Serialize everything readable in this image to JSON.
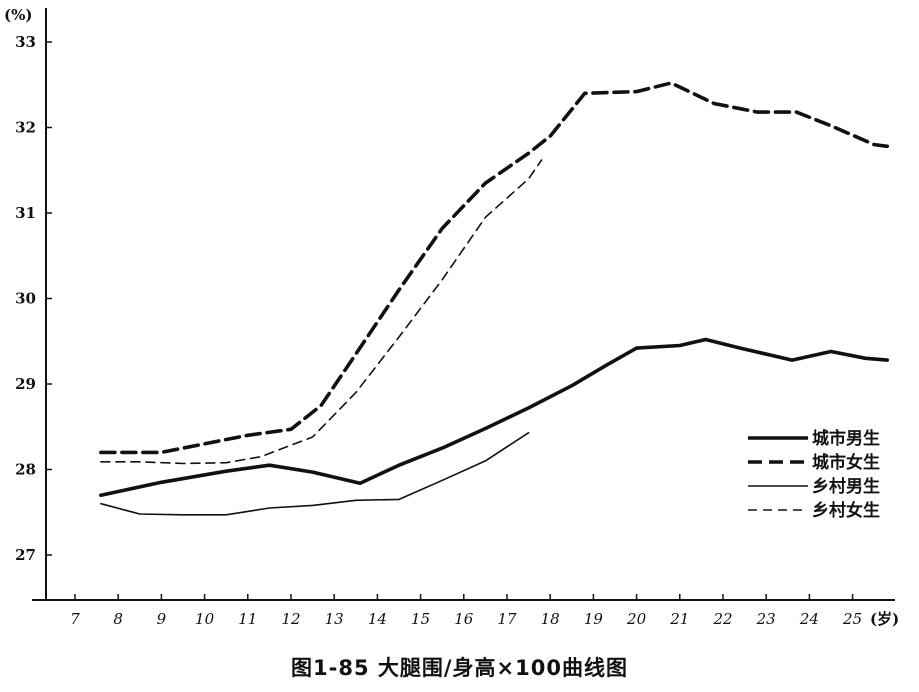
{
  "chart_data": {
    "type": "line",
    "title": "图1-85  大腿围/身高×100曲线图",
    "y_unit_label": "(%)",
    "x_unit_label": "(岁)",
    "xlim": [
      6,
      26
    ],
    "ylim": [
      26.5,
      33.3
    ],
    "x_ticks": [
      "7",
      "8",
      "9",
      "10",
      "11",
      "12",
      "13",
      "14",
      "15",
      "16",
      "17",
      "18",
      "19",
      "20",
      "21",
      "22",
      "23",
      "24",
      "25"
    ],
    "y_ticks": [
      "27",
      "28",
      "29",
      "30",
      "31",
      "32",
      "33"
    ],
    "grid": false,
    "legend_position": "right",
    "series": [
      {
        "name": "城市男生",
        "style": "thick-solid",
        "color": "#111111",
        "points": [
          [
            7.6,
            27.7
          ],
          [
            9,
            27.85
          ],
          [
            10.5,
            27.98
          ],
          [
            11.5,
            28.05
          ],
          [
            12.5,
            27.97
          ],
          [
            13.6,
            27.84
          ],
          [
            14.5,
            28.05
          ],
          [
            15.5,
            28.25
          ],
          [
            16.5,
            28.48
          ],
          [
            17.5,
            28.72
          ],
          [
            18.5,
            28.98
          ],
          [
            19.3,
            29.22
          ],
          [
            20,
            29.42
          ],
          [
            21,
            29.45
          ],
          [
            21.6,
            29.52
          ],
          [
            22.4,
            29.42
          ],
          [
            23.6,
            29.28
          ],
          [
            24.5,
            29.38
          ],
          [
            25.3,
            29.3
          ],
          [
            25.8,
            29.28
          ]
        ]
      },
      {
        "name": "城市女生",
        "style": "thick-dashed",
        "color": "#111111",
        "points": [
          [
            7.6,
            28.2
          ],
          [
            9,
            28.2
          ],
          [
            10,
            28.3
          ],
          [
            11,
            28.4
          ],
          [
            12,
            28.47
          ],
          [
            12.7,
            28.75
          ],
          [
            13.5,
            29.35
          ],
          [
            14.5,
            30.1
          ],
          [
            15.5,
            30.82
          ],
          [
            16.5,
            31.35
          ],
          [
            17.5,
            31.7
          ],
          [
            18,
            31.9
          ],
          [
            18.8,
            32.4
          ],
          [
            20,
            32.42
          ],
          [
            20.8,
            32.52
          ],
          [
            21.8,
            32.28
          ],
          [
            22.8,
            32.18
          ],
          [
            23.7,
            32.18
          ],
          [
            24.5,
            32.02
          ],
          [
            25.5,
            31.8
          ],
          [
            25.8,
            31.78
          ]
        ]
      },
      {
        "name": "乡村男生",
        "style": "thin-solid",
        "color": "#111111",
        "points": [
          [
            7.6,
            27.6
          ],
          [
            8.5,
            27.48
          ],
          [
            9.5,
            27.47
          ],
          [
            10.5,
            27.47
          ],
          [
            11.5,
            27.55
          ],
          [
            12.5,
            27.58
          ],
          [
            13.5,
            27.64
          ],
          [
            14.5,
            27.65
          ],
          [
            15.4,
            27.85
          ],
          [
            16.5,
            28.1
          ],
          [
            17.5,
            28.43
          ]
        ]
      },
      {
        "name": "乡村女生",
        "style": "thin-dashed",
        "color": "#111111",
        "points": [
          [
            7.6,
            28.09
          ],
          [
            8.5,
            28.09
          ],
          [
            9.5,
            28.07
          ],
          [
            10.5,
            28.08
          ],
          [
            11.3,
            28.15
          ],
          [
            12.5,
            28.38
          ],
          [
            13.5,
            28.9
          ],
          [
            14.5,
            29.55
          ],
          [
            15.5,
            30.22
          ],
          [
            16.5,
            30.95
          ],
          [
            17.5,
            31.4
          ],
          [
            17.8,
            31.62
          ]
        ]
      }
    ]
  }
}
